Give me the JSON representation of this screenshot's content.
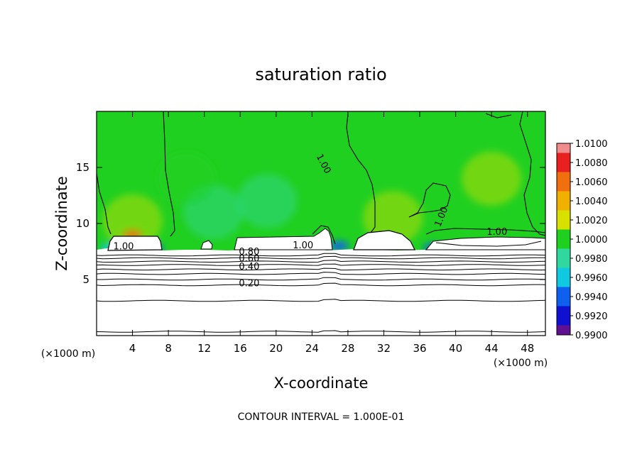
{
  "chart_data": {
    "type": "heatmap",
    "title": "saturation ratio",
    "xlabel": "X-coordinate",
    "ylabel": "Z-coordinate",
    "x_unit": "(×1000 m)",
    "y_unit": "(×1000 m)",
    "xlim": [
      0,
      50
    ],
    "ylim": [
      0,
      20
    ],
    "x_ticks": [
      4,
      8,
      12,
      16,
      20,
      24,
      28,
      32,
      36,
      40,
      44,
      48
    ],
    "y_ticks": [
      5,
      10,
      15
    ],
    "note": "CONTOUR INTERVAL = 1.000E-01",
    "colorbar": {
      "ticks": [
        "1.0100",
        "1.0080",
        "1.0060",
        "1.0040",
        "1.0020",
        "1.0000",
        "0.9980",
        "0.9960",
        "0.9940",
        "0.9920",
        "0.9900"
      ],
      "colors": [
        "#f08c8c",
        "#e82020",
        "#f07010",
        "#f0b000",
        "#d8e000",
        "#20d020",
        "#30d8a0",
        "#10c8e0",
        "#1060f0",
        "#1010d0",
        "#601090"
      ]
    },
    "contour_labels": [
      {
        "text": "1.00",
        "x": 25.0,
        "z": 15.2
      },
      {
        "text": "1.00",
        "x": 38.7,
        "z": 10.5
      },
      {
        "text": "1.00",
        "x": 44.6,
        "z": 9.0
      },
      {
        "text": "1.00",
        "x": 3.0,
        "z": 7.7
      },
      {
        "text": "1.00",
        "x": 23.0,
        "z": 7.8
      },
      {
        "text": "0.80",
        "x": 17.0,
        "z": 7.2
      },
      {
        "text": "0.60",
        "x": 17.0,
        "z": 6.6
      },
      {
        "text": "0.40",
        "x": 17.0,
        "z": 5.9
      },
      {
        "text": "0.20",
        "x": 17.0,
        "z": 4.4
      }
    ],
    "background_value": 1.0,
    "field_blobs": [
      {
        "x": 4,
        "z": 10.2,
        "v": 1.002
      },
      {
        "x": 4,
        "z": 9.0,
        "v": 1.006
      },
      {
        "x": 13,
        "z": 11,
        "v": 0.9985
      },
      {
        "x": 19,
        "z": 12,
        "v": 0.9985
      },
      {
        "x": 10,
        "z": 14,
        "v": 1.001
      },
      {
        "x": 44,
        "z": 14,
        "v": 1.0015
      },
      {
        "x": 33,
        "z": 10.5,
        "v": 1.002
      },
      {
        "x": 27,
        "z": 8.0,
        "v": 0.993
      },
      {
        "x": 37.5,
        "z": 7.8,
        "v": 0.994
      },
      {
        "x": 1.5,
        "z": 7.8,
        "v": 0.995
      },
      {
        "x": 6.3,
        "z": 7.8,
        "v": 0.994
      }
    ],
    "contour_lines_z": [
      0.35,
      3.1,
      4.5,
      5.0,
      5.5,
      5.9,
      6.3,
      6.6,
      6.9,
      7.15
    ]
  }
}
